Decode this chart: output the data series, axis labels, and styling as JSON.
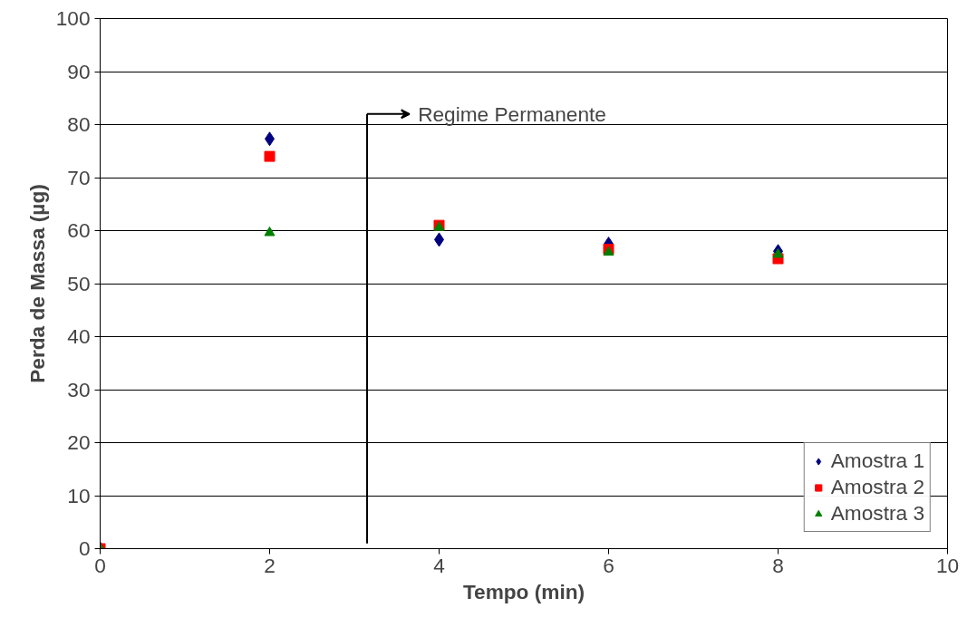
{
  "chart_data": {
    "type": "scatter",
    "xlabel": "Tempo (min)",
    "ylabel": "Perda de Massa (µg)",
    "xlim": [
      0,
      10
    ],
    "xticks": [
      0,
      2,
      4,
      6,
      8,
      10
    ],
    "ylim": [
      0,
      100
    ],
    "yticks": [
      0,
      10,
      20,
      30,
      40,
      50,
      60,
      70,
      80,
      90,
      100
    ],
    "x": [
      0,
      2,
      4,
      6,
      8
    ],
    "series": [
      {
        "name": "Amostra 1",
        "color": "#000080",
        "marker": "diamond",
        "values": [
          null,
          77.3,
          58.3,
          57.5,
          56.1
        ]
      },
      {
        "name": "Amostra 2",
        "color": "#ff0000",
        "marker": "square",
        "values": [
          0,
          74.0,
          61.0,
          56.5,
          54.7
        ]
      },
      {
        "name": "Amostra 3",
        "color": "#008000",
        "marker": "triangle",
        "values": [
          0,
          59.6,
          60.6,
          55.9,
          55.5
        ]
      }
    ],
    "ref_lines": [
      {
        "axis": "x",
        "value": 3.15,
        "label": "Regime Permanente"
      }
    ],
    "grid": "y",
    "legend": "bottom right"
  }
}
